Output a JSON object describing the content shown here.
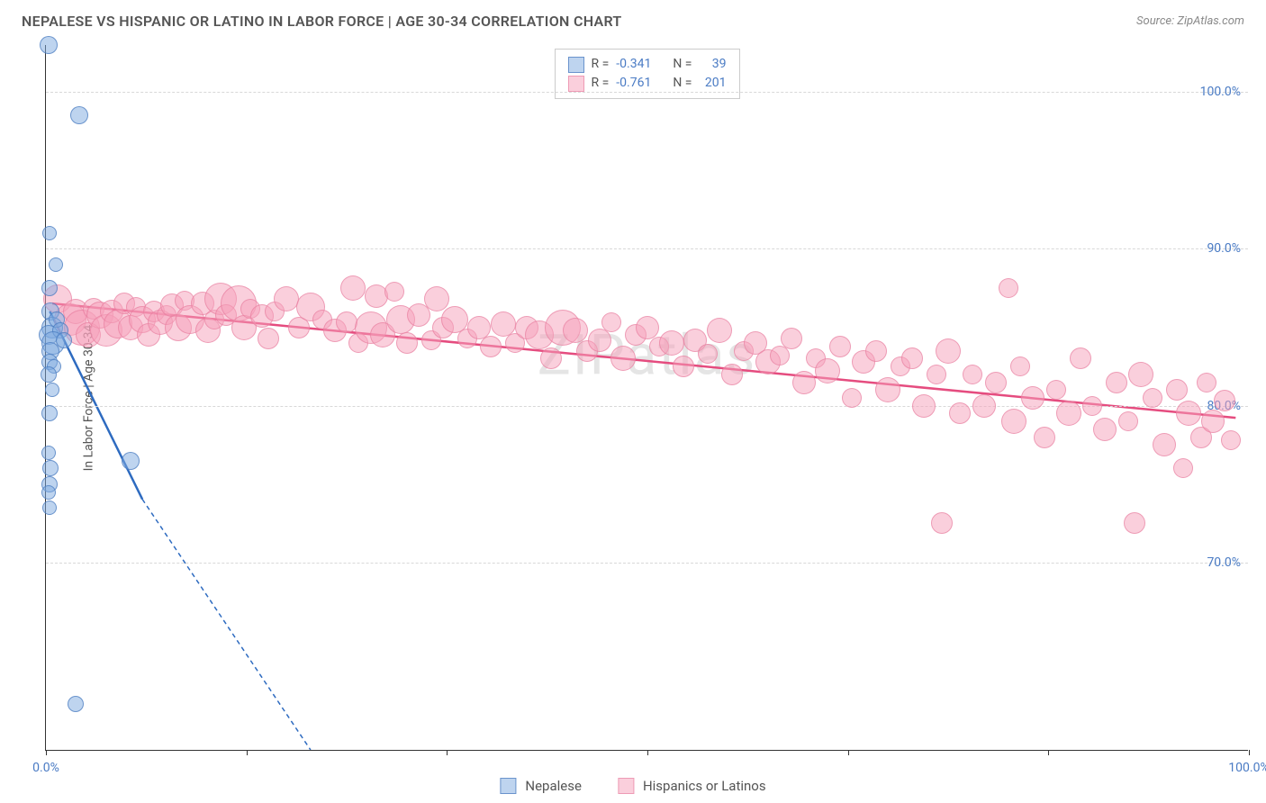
{
  "title": "NEPALESE VS HISPANIC OR LATINO IN LABOR FORCE | AGE 30-34 CORRELATION CHART",
  "source": "Source: ZipAtlas.com",
  "watermark": "ZIPatlas",
  "y_axis_title": "In Labor Force | Age 30-34",
  "chart": {
    "type": "scatter",
    "xlim": [
      0,
      100
    ],
    "ylim": [
      58,
      103
    ],
    "y_ticks": [
      70,
      80,
      90,
      100
    ],
    "y_tick_labels": [
      "70.0%",
      "80.0%",
      "90.0%",
      "100.0%"
    ],
    "x_ticks": [
      0,
      16.67,
      33.33,
      50,
      66.67,
      83.33,
      100
    ],
    "x_tick_labels_shown": {
      "0": "0.0%",
      "100": "100.0%"
    },
    "background_color": "#ffffff",
    "grid_color": "#d8d8d8",
    "series": {
      "nepalese": {
        "label": "Nepalese",
        "color_fill": "rgba(126,170,224,0.5)",
        "color_stroke": "rgba(70,120,190,0.7)",
        "r_value": "-0.341",
        "n_value": "39",
        "trend_color": "#2e6bc0",
        "trend_start": {
          "x": 0.3,
          "y": 86
        },
        "trend_end_solid": {
          "x": 8,
          "y": 74
        },
        "trend_end_dashed": {
          "x": 22,
          "y": 58
        },
        "points": [
          {
            "x": 0.2,
            "y": 103,
            "r": 10
          },
          {
            "x": 2.8,
            "y": 98.5,
            "r": 10
          },
          {
            "x": 0.3,
            "y": 91,
            "r": 8
          },
          {
            "x": 0.8,
            "y": 89,
            "r": 8
          },
          {
            "x": 0.3,
            "y": 87.5,
            "r": 9
          },
          {
            "x": 0.4,
            "y": 86,
            "r": 10
          },
          {
            "x": 0.5,
            "y": 85,
            "r": 12
          },
          {
            "x": 0.9,
            "y": 85.5,
            "r": 9
          },
          {
            "x": 0.2,
            "y": 84.5,
            "r": 11
          },
          {
            "x": 1.2,
            "y": 84.8,
            "r": 9
          },
          {
            "x": 0.6,
            "y": 84,
            "r": 13
          },
          {
            "x": 1.5,
            "y": 84.2,
            "r": 9
          },
          {
            "x": 0.4,
            "y": 83.5,
            "r": 10
          },
          {
            "x": 0.3,
            "y": 82.8,
            "r": 9
          },
          {
            "x": 0.7,
            "y": 82.5,
            "r": 8
          },
          {
            "x": 0.2,
            "y": 82,
            "r": 9
          },
          {
            "x": 0.5,
            "y": 81,
            "r": 8
          },
          {
            "x": 0.3,
            "y": 79.5,
            "r": 9
          },
          {
            "x": 0.2,
            "y": 77,
            "r": 8
          },
          {
            "x": 0.4,
            "y": 76,
            "r": 9
          },
          {
            "x": 7,
            "y": 76.5,
            "r": 10
          },
          {
            "x": 0.3,
            "y": 75,
            "r": 9
          },
          {
            "x": 0.2,
            "y": 74.5,
            "r": 8
          },
          {
            "x": 0.3,
            "y": 73.5,
            "r": 8
          },
          {
            "x": 2.5,
            "y": 61,
            "r": 9
          }
        ]
      },
      "hispanic": {
        "label": "Hispanics or Latinos",
        "color_fill": "rgba(245,160,185,0.5)",
        "color_stroke": "rgba(230,120,155,0.6)",
        "r_value": "-0.761",
        "n_value": "201",
        "trend_color": "#e54c7f",
        "trend_start": {
          "x": 0.5,
          "y": 86.5
        },
        "trend_end": {
          "x": 99,
          "y": 79.2
        },
        "points": [
          {
            "x": 1,
            "y": 86.8,
            "r": 16
          },
          {
            "x": 2,
            "y": 85.5,
            "r": 18
          },
          {
            "x": 2.5,
            "y": 86,
            "r": 14
          },
          {
            "x": 3,
            "y": 85,
            "r": 20
          },
          {
            "x": 3.5,
            "y": 84.5,
            "r": 14
          },
          {
            "x": 4,
            "y": 86.2,
            "r": 12
          },
          {
            "x": 4.5,
            "y": 85.8,
            "r": 15
          },
          {
            "x": 5,
            "y": 84.8,
            "r": 18
          },
          {
            "x": 5.5,
            "y": 86,
            "r": 13
          },
          {
            "x": 6,
            "y": 85.2,
            "r": 16
          },
          {
            "x": 6.5,
            "y": 86.5,
            "r": 12
          },
          {
            "x": 7,
            "y": 85,
            "r": 14
          },
          {
            "x": 7.5,
            "y": 86.3,
            "r": 11
          },
          {
            "x": 8,
            "y": 85.5,
            "r": 15
          },
          {
            "x": 8.5,
            "y": 84.5,
            "r": 13
          },
          {
            "x": 9,
            "y": 86,
            "r": 12
          },
          {
            "x": 9.5,
            "y": 85.3,
            "r": 14
          },
          {
            "x": 10,
            "y": 85.8,
            "r": 11
          },
          {
            "x": 10.5,
            "y": 86.4,
            "r": 13
          },
          {
            "x": 11,
            "y": 85,
            "r": 15
          },
          {
            "x": 11.5,
            "y": 86.7,
            "r": 11
          },
          {
            "x": 12,
            "y": 85.5,
            "r": 16
          },
          {
            "x": 13,
            "y": 86.5,
            "r": 13
          },
          {
            "x": 13.5,
            "y": 84.8,
            "r": 14
          },
          {
            "x": 14,
            "y": 85.5,
            "r": 11
          },
          {
            "x": 14.5,
            "y": 86.8,
            "r": 18
          },
          {
            "x": 15,
            "y": 85.8,
            "r": 12
          },
          {
            "x": 16,
            "y": 86.5,
            "r": 20
          },
          {
            "x": 16.5,
            "y": 85,
            "r": 14
          },
          {
            "x": 17,
            "y": 86.2,
            "r": 11
          },
          {
            "x": 18,
            "y": 85.7,
            "r": 13
          },
          {
            "x": 18.5,
            "y": 84.3,
            "r": 12
          },
          {
            "x": 19,
            "y": 86,
            "r": 11
          },
          {
            "x": 20,
            "y": 86.8,
            "r": 14
          },
          {
            "x": 21,
            "y": 85,
            "r": 12
          },
          {
            "x": 22,
            "y": 86.3,
            "r": 16
          },
          {
            "x": 23,
            "y": 85.5,
            "r": 11
          },
          {
            "x": 24,
            "y": 84.8,
            "r": 13
          },
          {
            "x": 25,
            "y": 85.3,
            "r": 12
          },
          {
            "x": 25.5,
            "y": 87.5,
            "r": 14
          },
          {
            "x": 26,
            "y": 84,
            "r": 11
          },
          {
            "x": 27,
            "y": 85,
            "r": 18
          },
          {
            "x": 27.5,
            "y": 87,
            "r": 13
          },
          {
            "x": 28,
            "y": 84.5,
            "r": 14
          },
          {
            "x": 29,
            "y": 87.3,
            "r": 11
          },
          {
            "x": 29.5,
            "y": 85.5,
            "r": 16
          },
          {
            "x": 30,
            "y": 84,
            "r": 12
          },
          {
            "x": 31,
            "y": 85.8,
            "r": 13
          },
          {
            "x": 32,
            "y": 84.2,
            "r": 11
          },
          {
            "x": 32.5,
            "y": 86.8,
            "r": 14
          },
          {
            "x": 33,
            "y": 85,
            "r": 12
          },
          {
            "x": 34,
            "y": 85.5,
            "r": 15
          },
          {
            "x": 35,
            "y": 84.3,
            "r": 11
          },
          {
            "x": 36,
            "y": 85,
            "r": 13
          },
          {
            "x": 37,
            "y": 83.8,
            "r": 12
          },
          {
            "x": 38,
            "y": 85.2,
            "r": 14
          },
          {
            "x": 39,
            "y": 84,
            "r": 11
          },
          {
            "x": 40,
            "y": 85,
            "r": 13
          },
          {
            "x": 41,
            "y": 84.5,
            "r": 16
          },
          {
            "x": 42,
            "y": 83,
            "r": 12
          },
          {
            "x": 43,
            "y": 85,
            "r": 20
          },
          {
            "x": 44,
            "y": 84.8,
            "r": 14
          },
          {
            "x": 45,
            "y": 83.5,
            "r": 12
          },
          {
            "x": 46,
            "y": 84.2,
            "r": 13
          },
          {
            "x": 47,
            "y": 85.3,
            "r": 11
          },
          {
            "x": 48,
            "y": 83,
            "r": 14
          },
          {
            "x": 49,
            "y": 84.5,
            "r": 12
          },
          {
            "x": 50,
            "y": 85,
            "r": 13
          },
          {
            "x": 51,
            "y": 83.8,
            "r": 11
          },
          {
            "x": 52,
            "y": 84,
            "r": 14
          },
          {
            "x": 53,
            "y": 82.5,
            "r": 12
          },
          {
            "x": 54,
            "y": 84.2,
            "r": 13
          },
          {
            "x": 55,
            "y": 83.3,
            "r": 11
          },
          {
            "x": 56,
            "y": 84.8,
            "r": 14
          },
          {
            "x": 57,
            "y": 82,
            "r": 12
          },
          {
            "x": 58,
            "y": 83.5,
            "r": 11
          },
          {
            "x": 59,
            "y": 84,
            "r": 13
          },
          {
            "x": 60,
            "y": 82.8,
            "r": 14
          },
          {
            "x": 61,
            "y": 83.2,
            "r": 11
          },
          {
            "x": 62,
            "y": 84.3,
            "r": 12
          },
          {
            "x": 63,
            "y": 81.5,
            "r": 13
          },
          {
            "x": 64,
            "y": 83,
            "r": 11
          },
          {
            "x": 65,
            "y": 82.2,
            "r": 14
          },
          {
            "x": 66,
            "y": 83.8,
            "r": 12
          },
          {
            "x": 67,
            "y": 80.5,
            "r": 11
          },
          {
            "x": 68,
            "y": 82.8,
            "r": 13
          },
          {
            "x": 69,
            "y": 83.5,
            "r": 12
          },
          {
            "x": 70,
            "y": 81,
            "r": 14
          },
          {
            "x": 71,
            "y": 82.5,
            "r": 11
          },
          {
            "x": 72,
            "y": 83,
            "r": 12
          },
          {
            "x": 73,
            "y": 80,
            "r": 13
          },
          {
            "x": 74,
            "y": 82,
            "r": 11
          },
          {
            "x": 74.5,
            "y": 72.5,
            "r": 12
          },
          {
            "x": 75,
            "y": 83.5,
            "r": 14
          },
          {
            "x": 76,
            "y": 79.5,
            "r": 12
          },
          {
            "x": 77,
            "y": 82,
            "r": 11
          },
          {
            "x": 78,
            "y": 80,
            "r": 13
          },
          {
            "x": 79,
            "y": 81.5,
            "r": 12
          },
          {
            "x": 80,
            "y": 87.5,
            "r": 11
          },
          {
            "x": 80.5,
            "y": 79,
            "r": 14
          },
          {
            "x": 81,
            "y": 82.5,
            "r": 11
          },
          {
            "x": 82,
            "y": 80.5,
            "r": 13
          },
          {
            "x": 83,
            "y": 78,
            "r": 12
          },
          {
            "x": 84,
            "y": 81,
            "r": 11
          },
          {
            "x": 85,
            "y": 79.5,
            "r": 14
          },
          {
            "x": 86,
            "y": 83,
            "r": 12
          },
          {
            "x": 87,
            "y": 80,
            "r": 11
          },
          {
            "x": 88,
            "y": 78.5,
            "r": 13
          },
          {
            "x": 89,
            "y": 81.5,
            "r": 12
          },
          {
            "x": 90,
            "y": 79,
            "r": 11
          },
          {
            "x": 90.5,
            "y": 72.5,
            "r": 12
          },
          {
            "x": 91,
            "y": 82,
            "r": 14
          },
          {
            "x": 92,
            "y": 80.5,
            "r": 11
          },
          {
            "x": 93,
            "y": 77.5,
            "r": 13
          },
          {
            "x": 94,
            "y": 81,
            "r": 12
          },
          {
            "x": 94.5,
            "y": 76,
            "r": 11
          },
          {
            "x": 95,
            "y": 79.5,
            "r": 14
          },
          {
            "x": 96,
            "y": 78,
            "r": 12
          },
          {
            "x": 96.5,
            "y": 81.5,
            "r": 11
          },
          {
            "x": 97,
            "y": 79,
            "r": 13
          },
          {
            "x": 98,
            "y": 80.3,
            "r": 12
          },
          {
            "x": 98.5,
            "y": 77.8,
            "r": 11
          }
        ]
      }
    }
  },
  "legend_stats": {
    "r_label": "R =",
    "n_label": "N ="
  }
}
